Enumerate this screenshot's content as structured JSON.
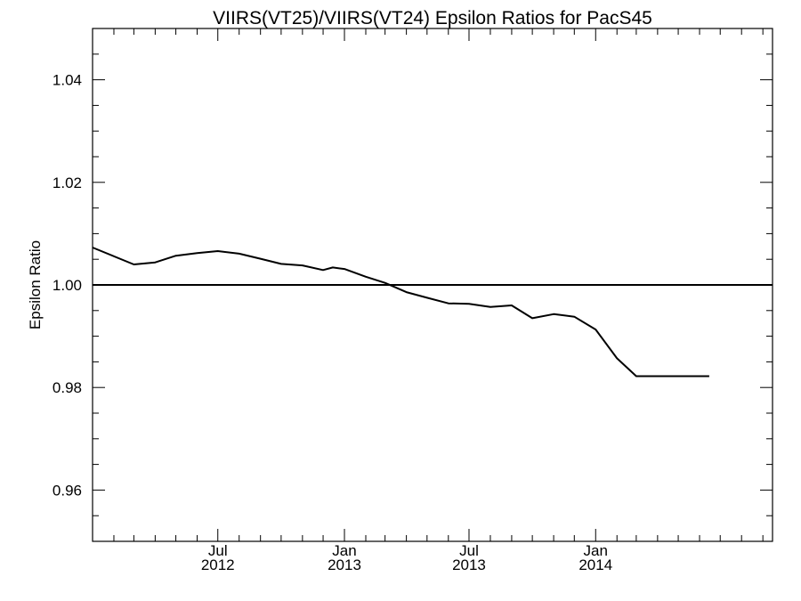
{
  "chart_data": {
    "type": "line",
    "title": "VIIRS(VT25)/VIIRS(VT24)  Epsilon Ratios for PacS45",
    "xlabel": "",
    "ylabel": "Epsilon Ratio",
    "ylim": [
      0.95,
      1.05
    ],
    "xlim": [
      "2012-01-01",
      "2014-09-15"
    ],
    "yticks": [
      {
        "value": 0.96,
        "label": "0.96"
      },
      {
        "value": 0.98,
        "label": "0.98"
      },
      {
        "value": 1.0,
        "label": "1.00"
      },
      {
        "value": 1.02,
        "label": "1.02"
      },
      {
        "value": 1.04,
        "label": "1.04"
      }
    ],
    "xticks": [
      {
        "date": "2012-07-01",
        "month": "Jul",
        "year": "2012"
      },
      {
        "date": "2013-01-01",
        "month": "Jan",
        "year": "2013"
      },
      {
        "date": "2013-07-01",
        "month": "Jul",
        "year": "2013"
      },
      {
        "date": "2014-01-01",
        "month": "Jan",
        "year": "2014"
      }
    ],
    "reference_line": 1.0,
    "grid": false,
    "series": [
      {
        "color": "#000000",
        "x": [
          "2012-01-01",
          "2012-03-01",
          "2012-04-01",
          "2012-05-01",
          "2012-06-01",
          "2012-07-01",
          "2012-08-01",
          "2012-09-01",
          "2012-10-01",
          "2012-11-01",
          "2012-12-01",
          "2012-12-15",
          "2013-01-01",
          "2013-02-01",
          "2013-03-01",
          "2013-04-01",
          "2013-05-01",
          "2013-06-01",
          "2013-07-01",
          "2013-08-01",
          "2013-09-01",
          "2013-10-01",
          "2013-11-01",
          "2013-12-01",
          "2014-01-01",
          "2014-02-01",
          "2014-03-01",
          "2014-04-01",
          "2014-05-01",
          "2014-05-20",
          "2014-06-15"
        ],
        "y": [
          1.0073,
          1.004,
          1.0044,
          1.0057,
          1.0062,
          1.0066,
          1.0061,
          1.0051,
          1.0041,
          1.0038,
          1.0029,
          1.0034,
          1.0031,
          1.0016,
          1.0004,
          0.9986,
          0.9975,
          0.9964,
          0.9963,
          0.9957,
          0.996,
          0.9935,
          0.9943,
          0.9938,
          0.9913,
          0.9857,
          0.9822,
          0.9822,
          0.9822,
          0.9822,
          0.9822
        ]
      }
    ]
  }
}
